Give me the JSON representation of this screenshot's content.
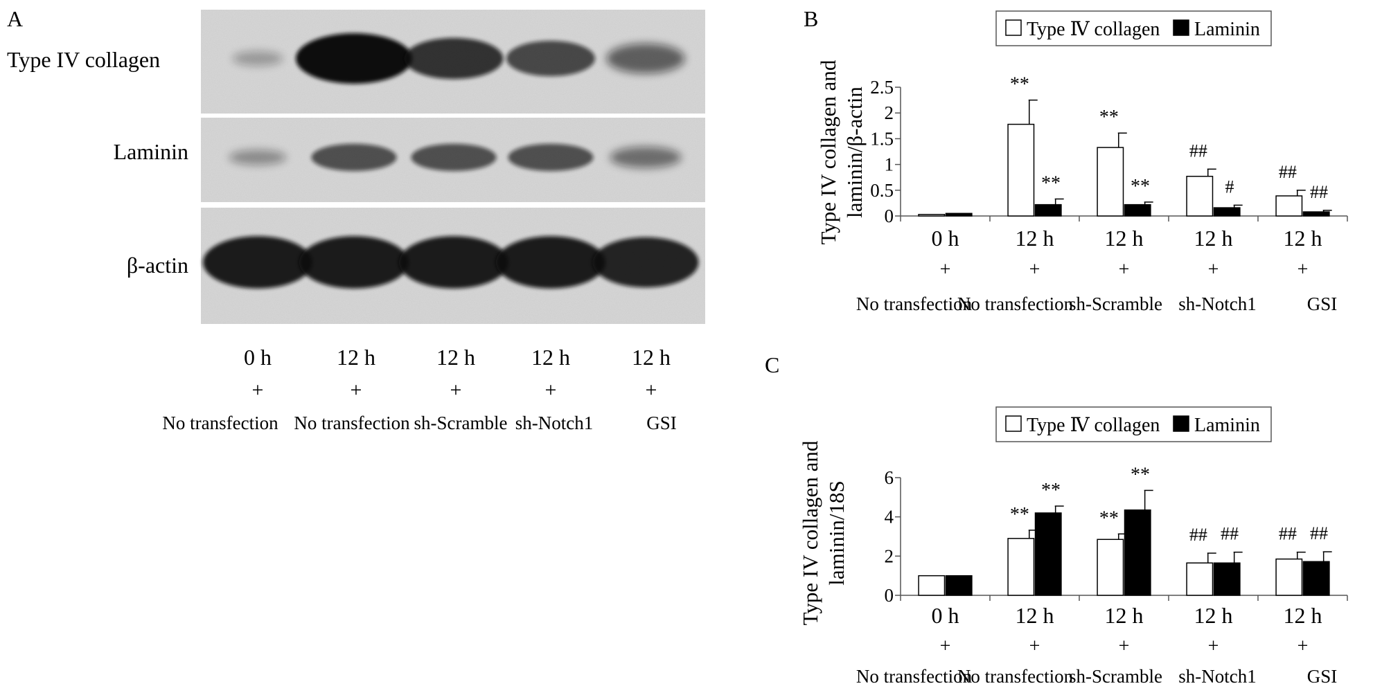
{
  "panel_a": {
    "label": "A",
    "rows": [
      "Type IV collagen",
      "Laminin",
      "β-actin"
    ],
    "lanes": [
      {
        "time": "0 h",
        "mark": "+",
        "treatment": "No transfection"
      },
      {
        "time": "12 h",
        "mark": "+",
        "treatment": "No transfection"
      },
      {
        "time": "12 h",
        "mark": "+",
        "treatment": "sh-Scramble"
      },
      {
        "time": "12 h",
        "mark": "+",
        "treatment": "sh-Notch1"
      },
      {
        "time": "12 h",
        "mark": "+",
        "treatment": "GSI"
      }
    ],
    "band_intensity": {
      "Type IV collagen": [
        0.05,
        1.0,
        0.75,
        0.6,
        0.45
      ],
      "Laminin": [
        0.15,
        0.55,
        0.55,
        0.55,
        0.35
      ],
      "β-actin": [
        0.9,
        0.9,
        0.9,
        0.9,
        0.85
      ]
    }
  },
  "chart_data": [
    {
      "panel": "B",
      "type": "bar",
      "title": "",
      "xlabel": "",
      "ylabel": "Type IV collagen and laminin/β-actin",
      "ylim": [
        0,
        2.5
      ],
      "yticks": [
        "0",
        "0.5",
        "1",
        "1.5",
        "2",
        "2.5"
      ],
      "categories": [
        {
          "time": "0 h",
          "mark": "+",
          "treatment": "No transfection"
        },
        {
          "time": "12 h",
          "mark": "+",
          "treatment": "No transfection"
        },
        {
          "time": "12 h",
          "mark": "+",
          "treatment": "sh-Scramble"
        },
        {
          "time": "12 h",
          "mark": "+",
          "treatment": "sh-Notch1"
        },
        {
          "time": "12 h",
          "mark": "+",
          "treatment": "GSI"
        }
      ],
      "series": [
        {
          "name": "Type Ⅳ collagen",
          "fill": "#ffffff",
          "values": [
            0.03,
            1.78,
            1.33,
            0.77,
            0.39
          ],
          "errors": [
            0.0,
            0.47,
            0.28,
            0.14,
            0.11
          ],
          "annotations": [
            "",
            "**",
            "**",
            "##",
            "##"
          ]
        },
        {
          "name": "Laminin",
          "fill": "#000000",
          "values": [
            0.05,
            0.22,
            0.22,
            0.16,
            0.08
          ],
          "errors": [
            0.0,
            0.11,
            0.05,
            0.05,
            0.03
          ],
          "annotations": [
            "",
            "**",
            "**",
            "#",
            "##"
          ]
        }
      ],
      "legend": "top"
    },
    {
      "panel": "C",
      "type": "bar",
      "title": "",
      "xlabel": "",
      "ylabel": "Type IV collagen and laminin/18S",
      "ylim": [
        0,
        6
      ],
      "yticks": [
        "0",
        "2",
        "4",
        "6"
      ],
      "categories": [
        {
          "time": "0 h",
          "mark": "+",
          "treatment": "No transfection"
        },
        {
          "time": "12 h",
          "mark": "+",
          "treatment": "No transfection"
        },
        {
          "time": "12 h",
          "mark": "+",
          "treatment": "sh-Scramble"
        },
        {
          "time": "12 h",
          "mark": "+",
          "treatment": "sh-Notch1"
        },
        {
          "time": "12 h",
          "mark": "+",
          "treatment": "GSI"
        }
      ],
      "series": [
        {
          "name": "Type Ⅳ collagen",
          "fill": "#ffffff",
          "values": [
            1.0,
            2.9,
            2.85,
            1.65,
            1.85
          ],
          "errors": [
            0.0,
            0.42,
            0.28,
            0.5,
            0.35
          ],
          "annotations": [
            "",
            "**",
            "**",
            "##",
            "##"
          ]
        },
        {
          "name": "Laminin",
          "fill": "#000000",
          "values": [
            1.0,
            4.2,
            4.35,
            1.65,
            1.72
          ],
          "errors": [
            0.0,
            0.35,
            1.0,
            0.55,
            0.5
          ],
          "annotations": [
            "",
            "**",
            "**",
            "##",
            "##"
          ]
        }
      ],
      "legend": "top"
    }
  ]
}
